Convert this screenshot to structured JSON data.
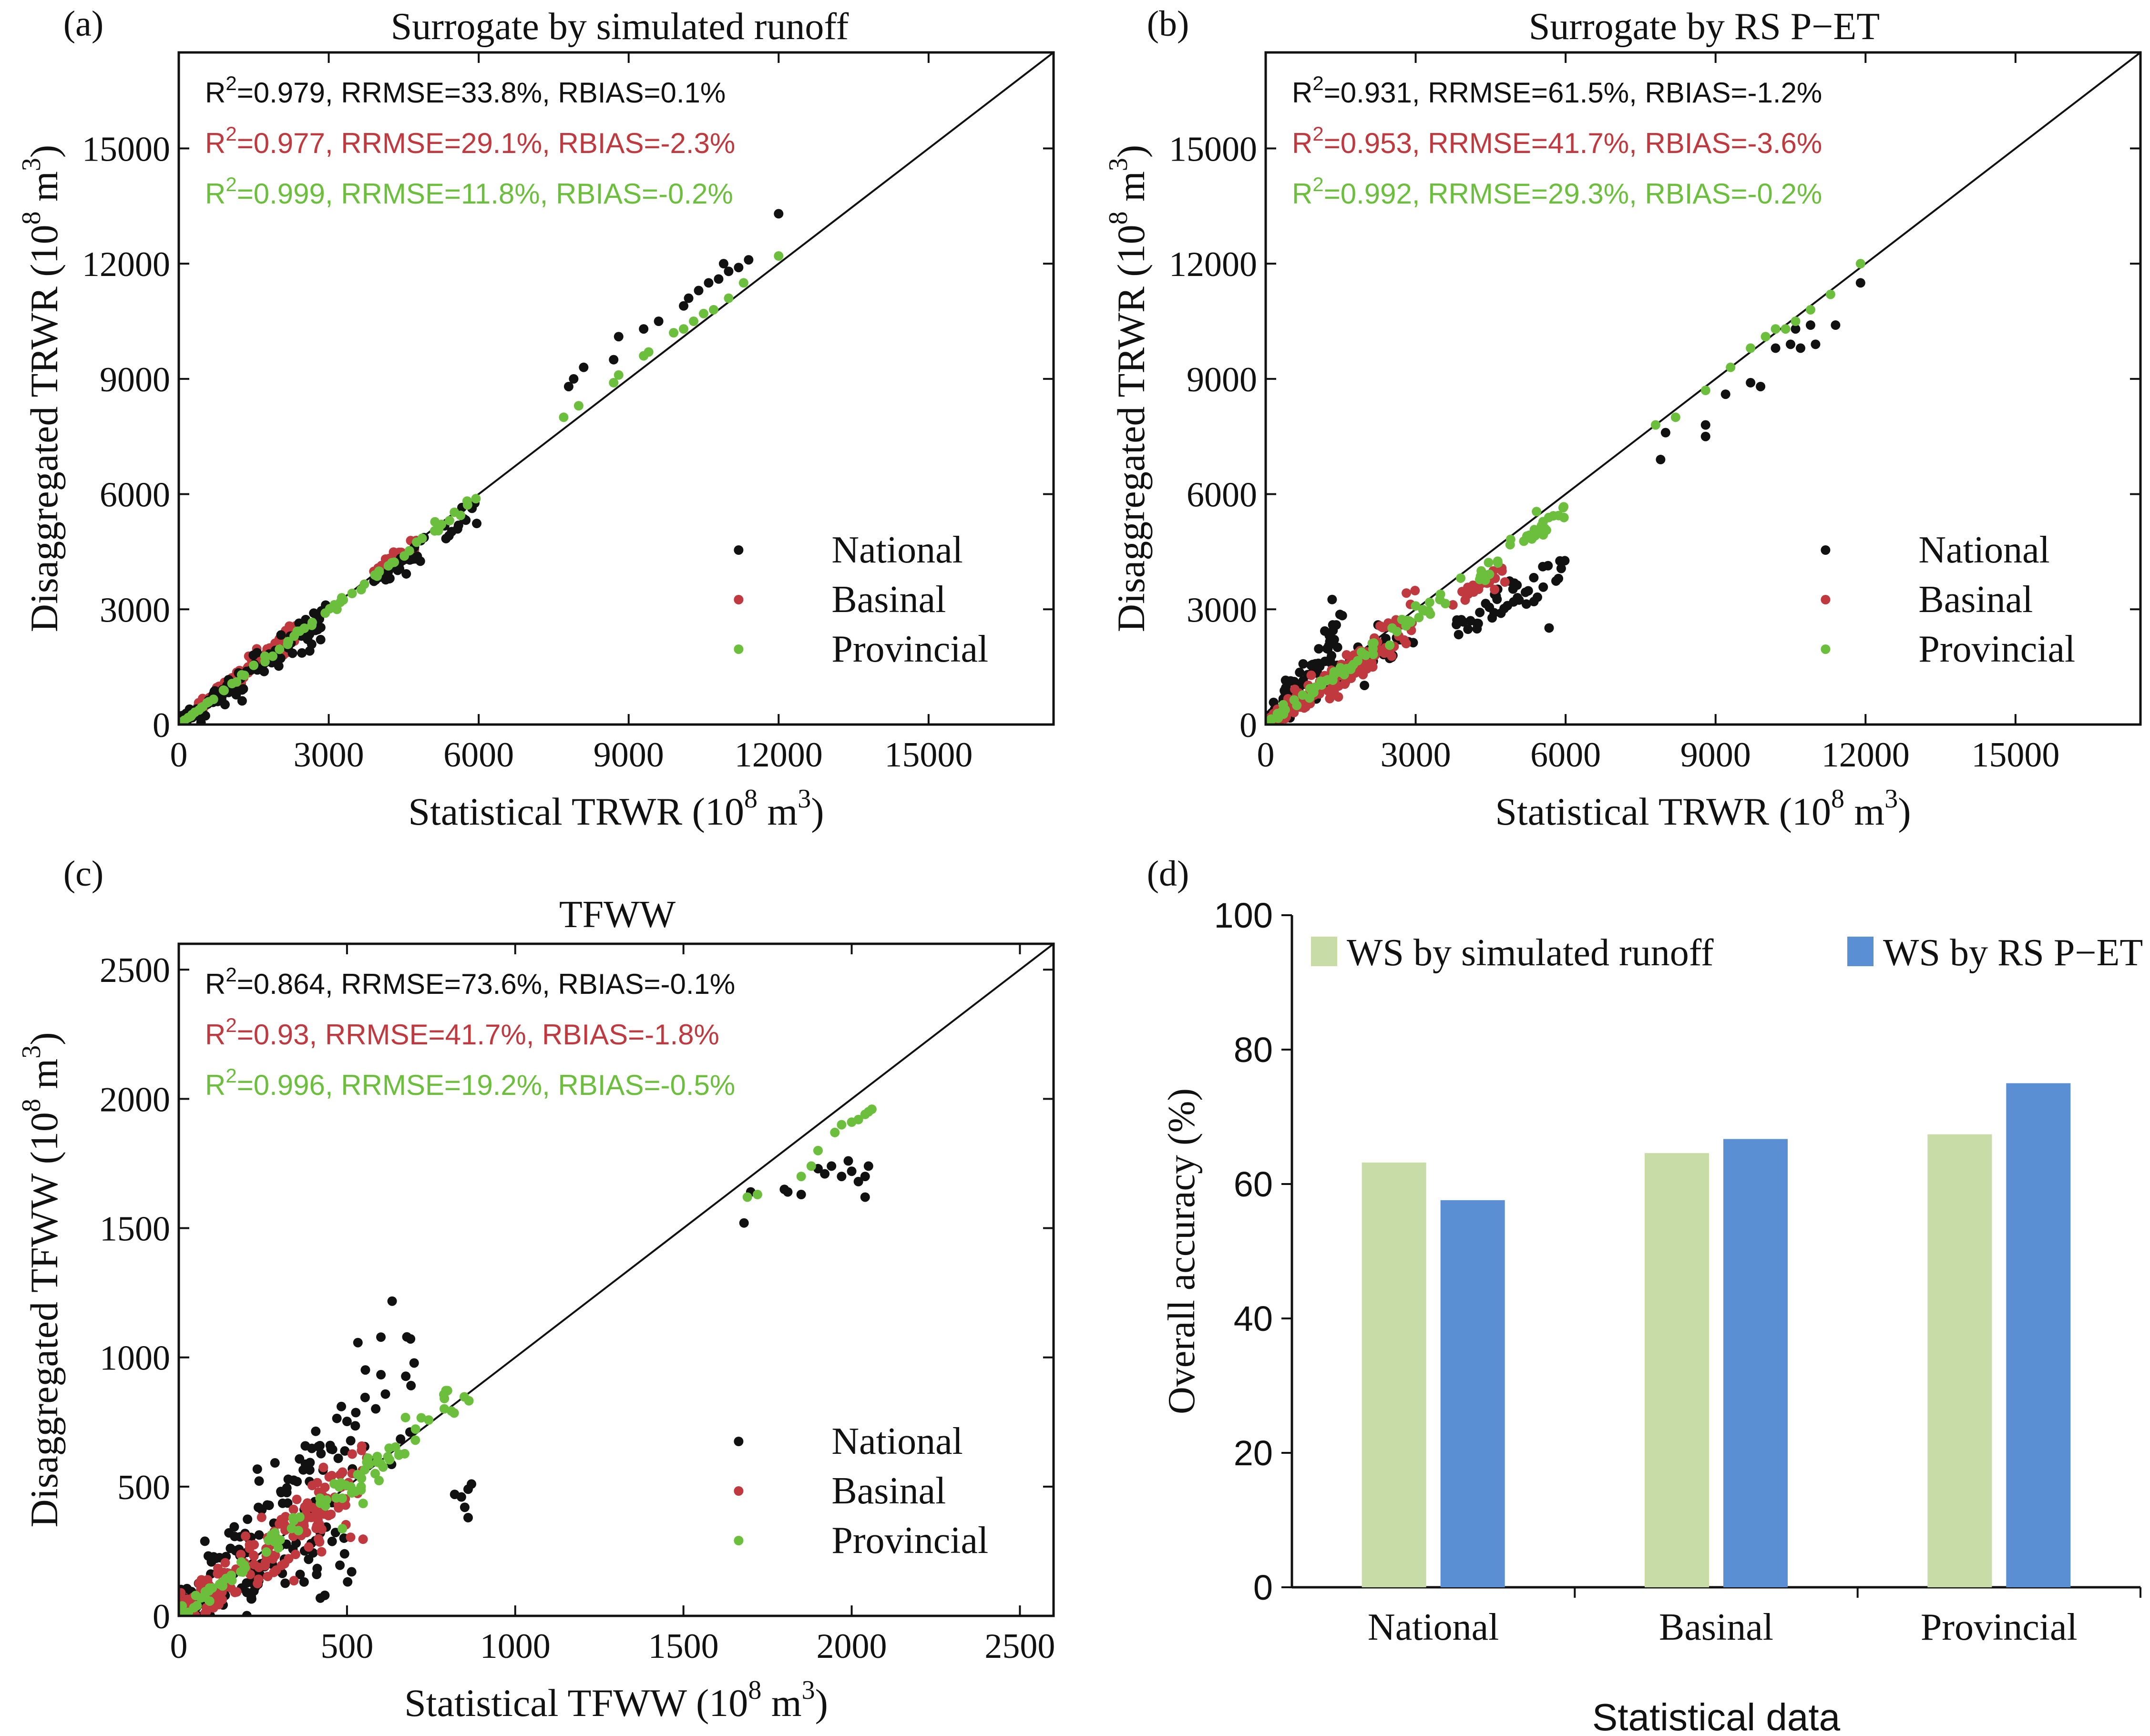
{
  "colors": {
    "national": "#111111",
    "basinal": "#c0393f",
    "provincial": "#6cbf3d",
    "bar_runoff": "#c8dca8",
    "bar_rs": "#5b8fd4",
    "axis": "#111111"
  },
  "chart_data": [
    {
      "type": "scatter",
      "panel_label": "(a)",
      "title": "Surrogate by simulated runoff",
      "xlabel": "Statistical TRWR (10",
      "ylabel": "Disaggregated TRWR (10",
      "unit_exp": "8",
      "unit_tail": " m",
      "unit_sup3": "3",
      "unit_close": ")",
      "xlim": [
        0,
        17500
      ],
      "ylim": [
        0,
        17500
      ],
      "xticks": [
        0,
        3000,
        6000,
        9000,
        12000,
        15000
      ],
      "xtick_labels": [
        "0",
        "3000",
        "6000",
        "9000",
        "12000",
        "15000"
      ],
      "yticks": [
        0,
        3000,
        6000,
        9000,
        12000,
        15000
      ],
      "ytick_labels": [
        "0",
        "3000",
        "6000",
        "9000",
        "12000",
        "15000"
      ],
      "stats": [
        {
          "pre": "R",
          "sup": "2",
          "post": "=0.979, RRMSE=33.8%, RBIAS=0.1%",
          "series": "national"
        },
        {
          "pre": "R",
          "sup": "2",
          "post": "=0.977, RRMSE=29.1%, RBIAS=-2.3%",
          "series": "basinal"
        },
        {
          "pre": "R",
          "sup": "2",
          "post": "=0.999, RRMSE=11.8%, RBIAS=-0.2%",
          "series": "provincial"
        }
      ],
      "legend": [
        "National",
        "Basinal",
        "Provincial"
      ],
      "legend_position": "lower-right",
      "clusters": [
        {
          "series": "basinal",
          "x0": 0,
          "x1": 2500,
          "slope": 1.03,
          "spread": 150,
          "n": 130
        },
        {
          "series": "basinal",
          "x0": 3900,
          "x1": 4800,
          "slope": 1.02,
          "spread": 100,
          "n": 18
        },
        {
          "series": "national",
          "x0": 0,
          "x1": 3000,
          "slope": 0.93,
          "spread": 240,
          "n": 110
        },
        {
          "series": "national",
          "x0": 3900,
          "x1": 6000,
          "slope": 0.94,
          "spread": 200,
          "n": 40
        },
        {
          "series": "provincial",
          "x0": 0,
          "x1": 6000,
          "slope": 0.99,
          "spread": 60,
          "n": 70
        }
      ],
      "points": {
        "national": [
          [
            7800,
            8800
          ],
          [
            7900,
            9000
          ],
          [
            8100,
            9300
          ],
          [
            8700,
            9500
          ],
          [
            8800,
            10100
          ],
          [
            9300,
            10300
          ],
          [
            9600,
            10500
          ],
          [
            10100,
            10900
          ],
          [
            10200,
            11100
          ],
          [
            10400,
            11300
          ],
          [
            10600,
            11500
          ],
          [
            10800,
            11600
          ],
          [
            10900,
            12000
          ],
          [
            11000,
            11800
          ],
          [
            11200,
            11900
          ],
          [
            11400,
            12100
          ],
          [
            12000,
            13300
          ]
        ],
        "provincial": [
          [
            7700,
            8000
          ],
          [
            8000,
            8300
          ],
          [
            8700,
            8900
          ],
          [
            8800,
            9100
          ],
          [
            9300,
            9600
          ],
          [
            9400,
            9700
          ],
          [
            9900,
            10200
          ],
          [
            10100,
            10300
          ],
          [
            10300,
            10500
          ],
          [
            10500,
            10700
          ],
          [
            10700,
            10800
          ],
          [
            11000,
            11100
          ],
          [
            11300,
            11500
          ],
          [
            12000,
            12200
          ]
        ]
      }
    },
    {
      "type": "scatter",
      "panel_label": "(b)",
      "title": "Surrogate by RS P−ET",
      "xlabel": "Statistical TRWR (10",
      "ylabel": "Disaggregated TRWR (10",
      "unit_exp": "8",
      "unit_tail": " m",
      "unit_sup3": "3",
      "unit_close": ")",
      "xlim": [
        0,
        17500
      ],
      "ylim": [
        0,
        17500
      ],
      "xticks": [
        0,
        3000,
        6000,
        9000,
        12000,
        15000
      ],
      "xtick_labels": [
        "0",
        "3000",
        "6000",
        "9000",
        "12000",
        "15000"
      ],
      "yticks": [
        0,
        3000,
        6000,
        9000,
        12000,
        15000
      ],
      "ytick_labels": [
        "0",
        "3000",
        "6000",
        "9000",
        "12000",
        "15000"
      ],
      "stats": [
        {
          "pre": "R",
          "sup": "2",
          "post": "=0.931, RRMSE=61.5%, RBIAS=-1.2%",
          "series": "national"
        },
        {
          "pre": "R",
          "sup": "2",
          "post": "=0.953, RRMSE=41.7%, RBIAS=-3.6%",
          "series": "basinal"
        },
        {
          "pre": "R",
          "sup": "2",
          "post": "=0.992, RRMSE=29.3%, RBIAS=-0.2%",
          "series": "provincial"
        }
      ],
      "legend": [
        "National",
        "Basinal",
        "Provincial"
      ],
      "legend_position": "lower-right",
      "clusters": [
        {
          "series": "national",
          "x0": 0,
          "x1": 1600,
          "slope": 1.55,
          "spread": 350,
          "n": 90
        },
        {
          "series": "national",
          "x0": 1000,
          "x1": 3000,
          "slope": 0.85,
          "spread": 300,
          "n": 50
        },
        {
          "series": "national",
          "x0": 3800,
          "x1": 6000,
          "slope": 0.65,
          "spread": 280,
          "n": 45
        },
        {
          "series": "basinal",
          "x0": 0,
          "x1": 3000,
          "slope": 0.9,
          "spread": 260,
          "n": 160
        },
        {
          "series": "basinal",
          "x0": 3700,
          "x1": 4800,
          "slope": 0.85,
          "spread": 150,
          "n": 20
        },
        {
          "series": "provincial",
          "x0": 0,
          "x1": 6000,
          "slope": 0.93,
          "spread": 150,
          "n": 90
        }
      ],
      "points": {
        "national": [
          [
            7900,
            6900
          ],
          [
            8000,
            7600
          ],
          [
            8800,
            7500
          ],
          [
            8800,
            7800
          ],
          [
            9200,
            8600
          ],
          [
            9700,
            8900
          ],
          [
            9900,
            8800
          ],
          [
            10200,
            9800
          ],
          [
            10500,
            9900
          ],
          [
            10600,
            10300
          ],
          [
            10700,
            9800
          ],
          [
            10900,
            10400
          ],
          [
            11000,
            9900
          ],
          [
            11400,
            10400
          ],
          [
            11900,
            11500
          ]
        ],
        "provincial": [
          [
            7800,
            7800
          ],
          [
            8200,
            8000
          ],
          [
            8800,
            8700
          ],
          [
            9300,
            9300
          ],
          [
            9700,
            9800
          ],
          [
            10000,
            10100
          ],
          [
            10200,
            10300
          ],
          [
            10400,
            10300
          ],
          [
            10600,
            10500
          ],
          [
            10900,
            10800
          ],
          [
            11300,
            11200
          ],
          [
            11900,
            12000
          ]
        ]
      }
    },
    {
      "type": "scatter",
      "panel_label": "(c)",
      "title": "TFWW",
      "xlabel": "Statistical TFWW (10",
      "ylabel": "Disaggregated TFWW (10",
      "unit_exp": "8",
      "unit_tail": " m",
      "unit_sup3": "3",
      "unit_close": ")",
      "xlim": [
        0,
        2600
      ],
      "ylim": [
        0,
        2600
      ],
      "xticks": [
        0,
        500,
        1000,
        1500,
        2000,
        2500
      ],
      "xtick_labels": [
        "0",
        "500",
        "1000",
        "1500",
        "2000",
        "2500"
      ],
      "yticks": [
        0,
        500,
        1000,
        1500,
        2000,
        2500
      ],
      "ytick_labels": [
        "0",
        "500",
        "1000",
        "1500",
        "2000",
        "2500"
      ],
      "stats": [
        {
          "pre": "R",
          "sup": "2",
          "post": "=0.864, RRMSE=73.6%, RBIAS=-0.1%",
          "series": "national"
        },
        {
          "pre": "R",
          "sup": "2",
          "post": "=0.93, RRMSE=41.7%, RBIAS=-1.8%",
          "series": "basinal"
        },
        {
          "pre": "R",
          "sup": "2",
          "post": "=0.996, RRMSE=19.2%, RBIAS=-0.5%",
          "series": "provincial"
        }
      ],
      "legend": [
        "National",
        "Basinal",
        "Provincial"
      ],
      "legend_position": "lower-right",
      "clusters": [
        {
          "series": "national",
          "x0": 0,
          "x1": 300,
          "slope": 1.2,
          "spread": 120,
          "n": 80
        },
        {
          "series": "national",
          "x0": 200,
          "x1": 520,
          "slope": 0.55,
          "spread": 90,
          "n": 50
        },
        {
          "series": "national",
          "x0": 300,
          "x1": 700,
          "slope": 1.45,
          "spread": 120,
          "n": 55
        },
        {
          "series": "basinal",
          "x0": 0,
          "x1": 560,
          "slope": 0.95,
          "spread": 70,
          "n": 170
        },
        {
          "series": "provincial",
          "x0": 0,
          "x1": 870,
          "slope": 1.0,
          "spread": 35,
          "n": 90
        }
      ],
      "points": {
        "national": [
          [
            1680,
            1520
          ],
          [
            1700,
            1640
          ],
          [
            1800,
            1650
          ],
          [
            1810,
            1640
          ],
          [
            1850,
            1630
          ],
          [
            1900,
            1730
          ],
          [
            1920,
            1710
          ],
          [
            1940,
            1740
          ],
          [
            1970,
            1700
          ],
          [
            1990,
            1760
          ],
          [
            2000,
            1720
          ],
          [
            2020,
            1680
          ],
          [
            2040,
            1700
          ],
          [
            2050,
            1740
          ],
          [
            2040,
            1620
          ],
          [
            820,
            470
          ],
          [
            840,
            460
          ],
          [
            850,
            420
          ],
          [
            860,
            490
          ],
          [
            870,
            510
          ],
          [
            860,
            380
          ]
        ],
        "provincial": [
          [
            1690,
            1620
          ],
          [
            1720,
            1630
          ],
          [
            1850,
            1700
          ],
          [
            1880,
            1740
          ],
          [
            1900,
            1800
          ],
          [
            1950,
            1870
          ],
          [
            1970,
            1900
          ],
          [
            2000,
            1910
          ],
          [
            2020,
            1920
          ],
          [
            2040,
            1940
          ],
          [
            2050,
            1950
          ],
          [
            2060,
            1960
          ]
        ]
      }
    },
    {
      "type": "bar",
      "panel_label": "(d)",
      "categories": [
        "National",
        "Basinal",
        "Provincial"
      ],
      "xlabel": "Statistical data",
      "ylabel": "Overall accuracy (%)",
      "ylim": [
        0,
        100
      ],
      "yticks": [
        0,
        20,
        40,
        60,
        80,
        100
      ],
      "ytick_labels": [
        "0",
        "20",
        "40",
        "60",
        "80",
        "100"
      ],
      "series": [
        {
          "name": "WS by simulated runoff",
          "values": [
            63.2,
            64.6,
            67.4
          ]
        },
        {
          "name": "WS by RS P−ET",
          "values": [
            57.6,
            66.7,
            75.0
          ]
        }
      ],
      "legend_position": "top"
    }
  ]
}
